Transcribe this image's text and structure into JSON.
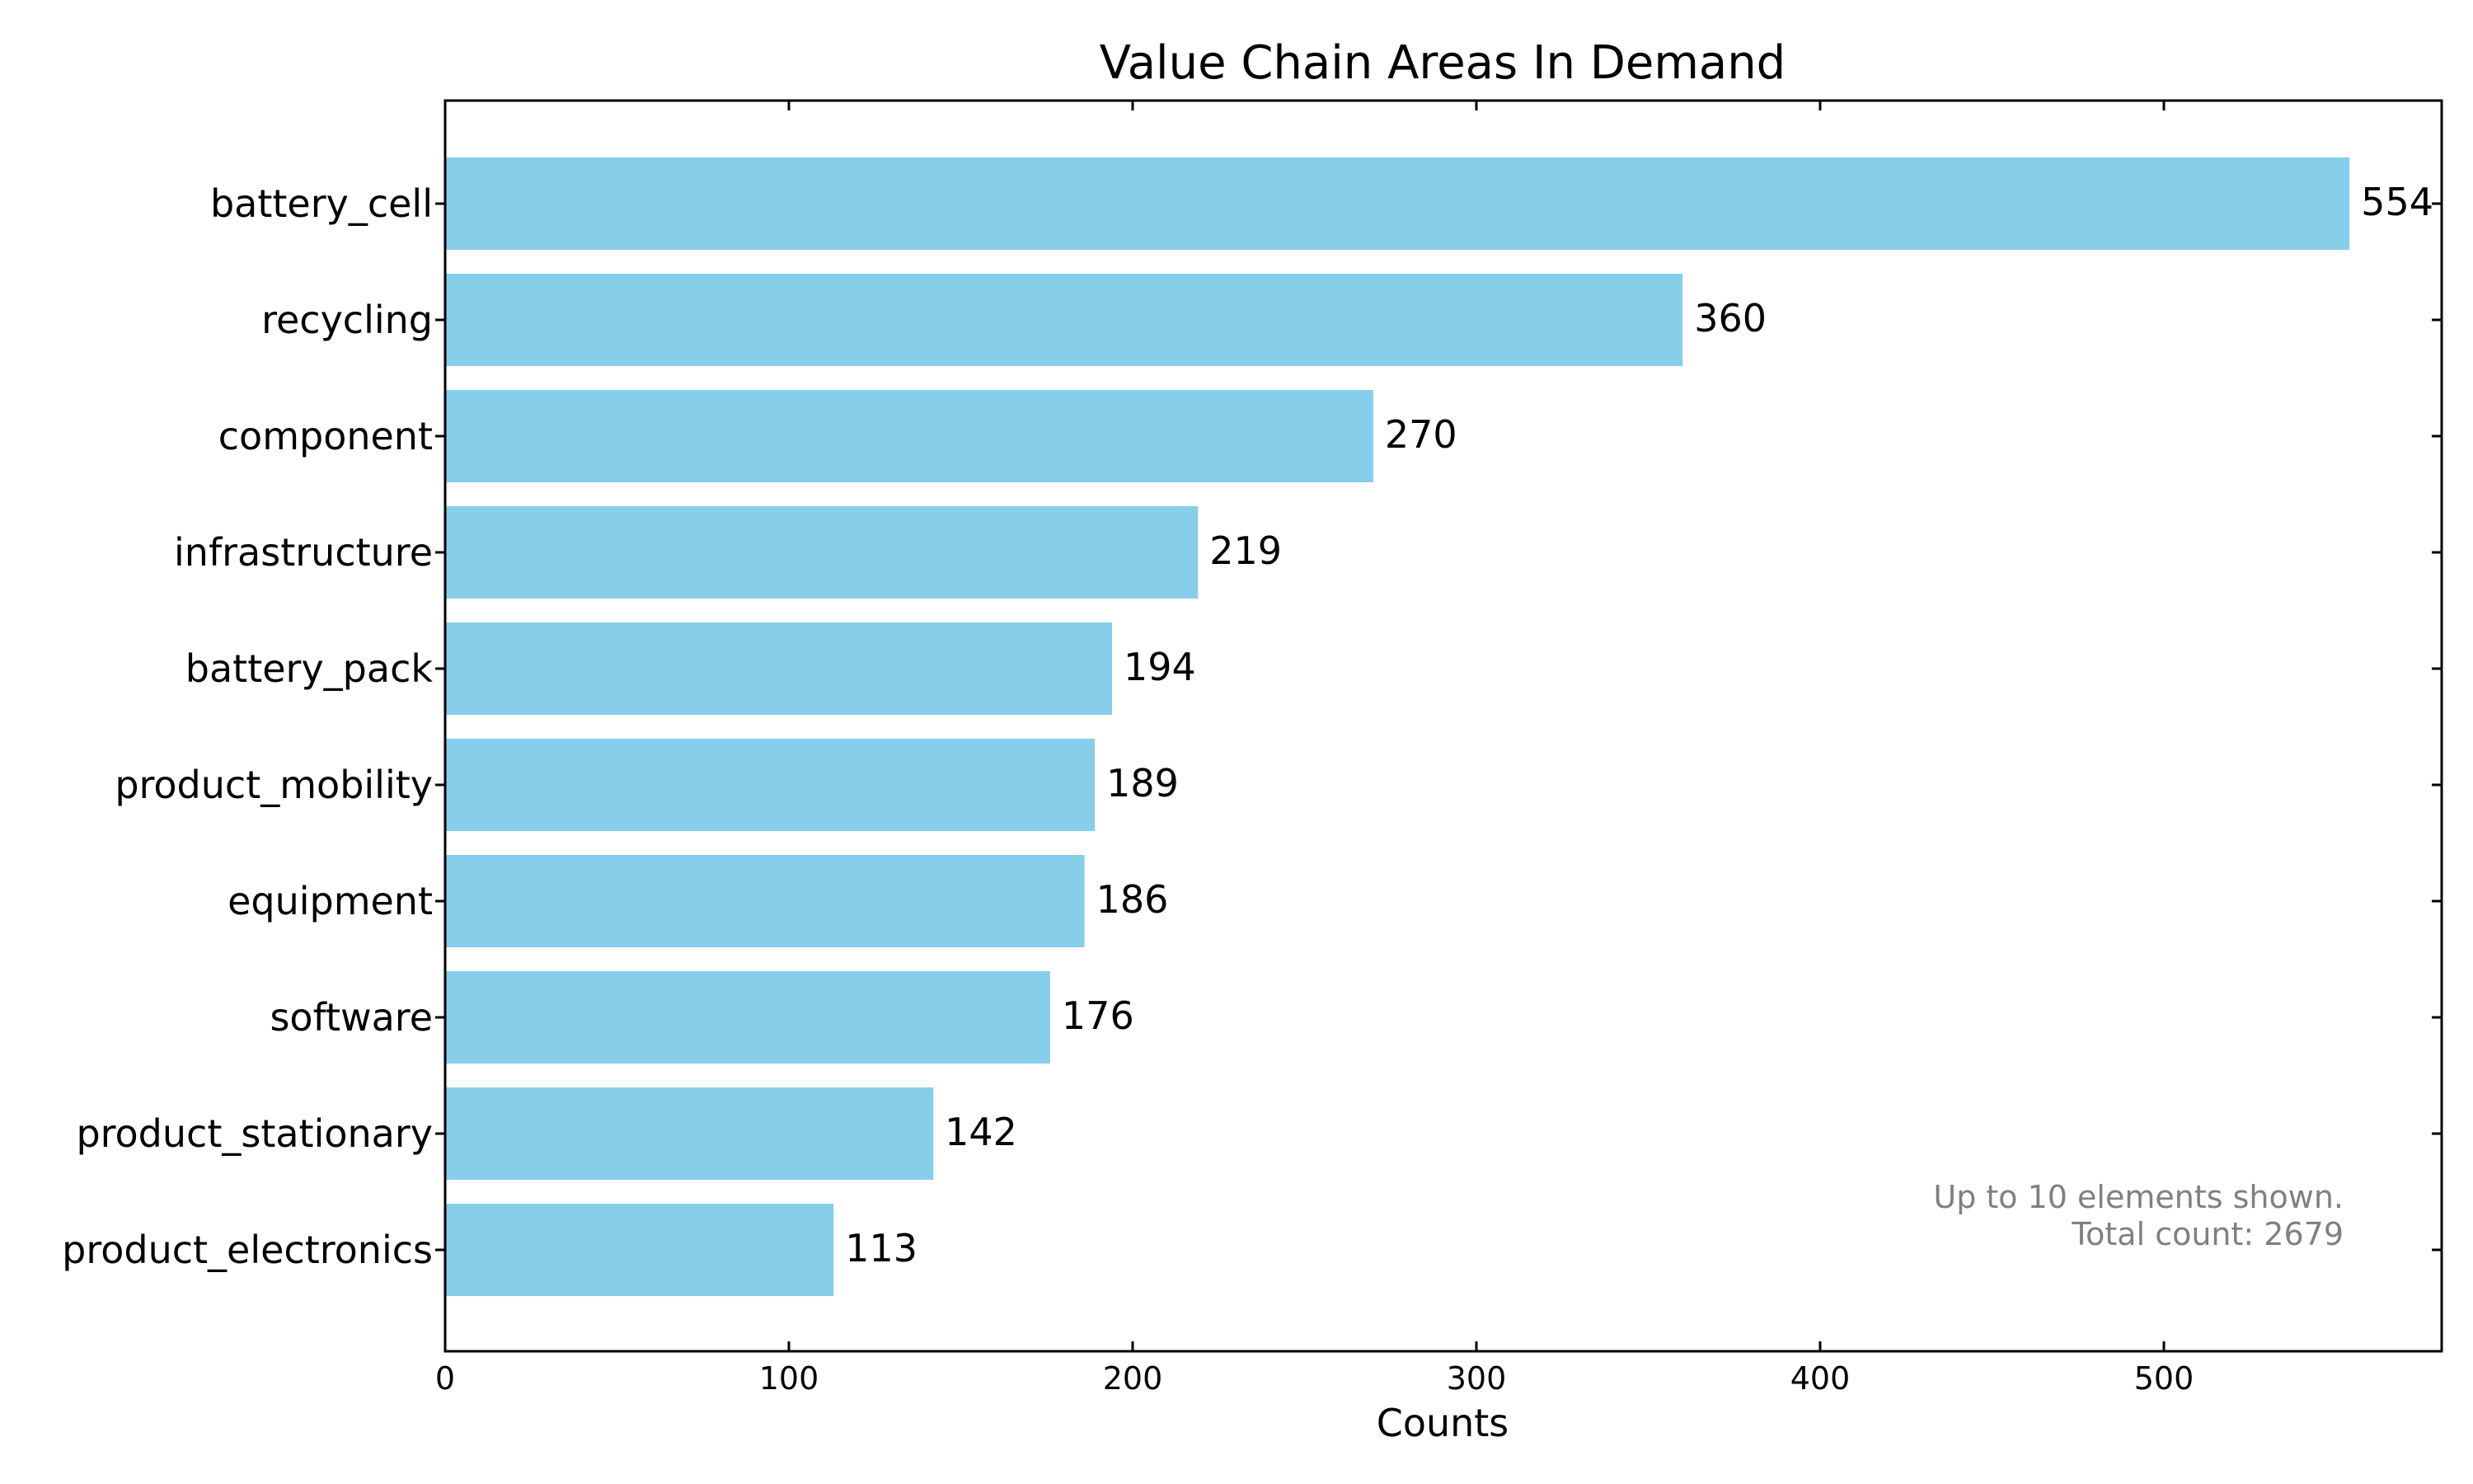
{
  "chart_data": {
    "type": "bar",
    "orientation": "horizontal",
    "title": "Value Chain Areas In Demand",
    "xlabel": "Counts",
    "ylabel": "",
    "xlim": [
      0,
      580
    ],
    "xticks": [
      0,
      100,
      200,
      300,
      400,
      500
    ],
    "grid": false,
    "bar_color": "#87ceeb",
    "categories": [
      "battery_cell",
      "recycling",
      "component",
      "infrastructure",
      "battery_pack",
      "product_mobility",
      "equipment",
      "software",
      "product_stationary",
      "product_electronics"
    ],
    "values": [
      554,
      360,
      270,
      219,
      194,
      189,
      186,
      176,
      142,
      113
    ],
    "annotation": {
      "line1": "Up to 10 elements shown.",
      "line2": "Total count: 2679"
    }
  }
}
